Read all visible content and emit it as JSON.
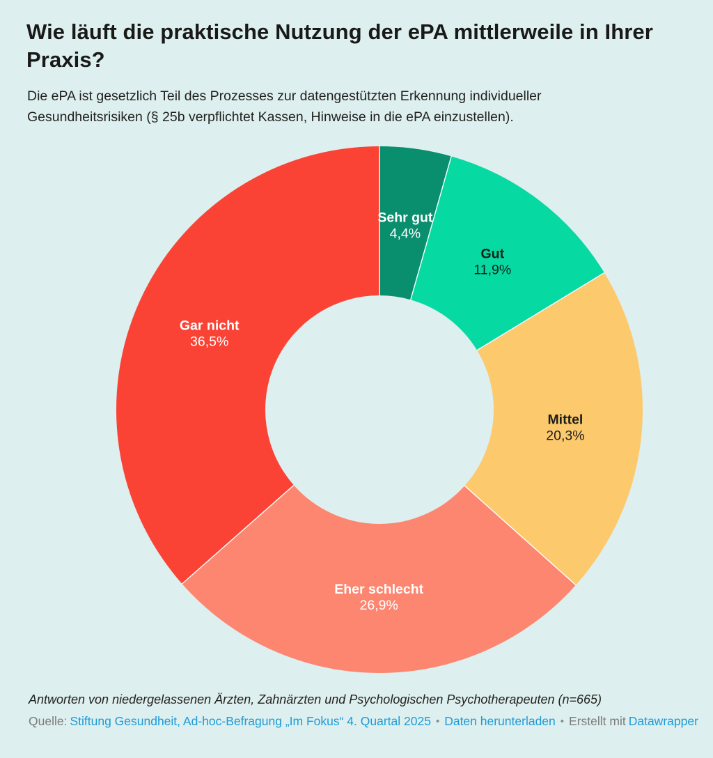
{
  "header": {
    "title_lines": [
      "Wie läuft die praktische Nutzung der ePA mittlerweile in Ihrer",
      "Praxis?"
    ],
    "subtitle_lines": [
      "Die ePA ist gesetzlich Teil des Prozesses zur datengestützten Erkennung individueller",
      "Gesundheitsrisiken (§ 25b verpflichtet Kassen, Hinweise in die ePA einzustellen)."
    ]
  },
  "chart_data": {
    "type": "pie",
    "subtype": "donut",
    "title": "Wie läuft die praktische Nutzung der ePA mittlerweile in Ihrer Praxis?",
    "unit": "%",
    "start_angle": "top",
    "direction": "clockwise",
    "legend_position": "labels-inside-slices",
    "categories": [
      "Sehr gut",
      "Gut",
      "Mittel",
      "Eher schlecht",
      "Gar nicht"
    ],
    "values": [
      4.4,
      11.9,
      20.3,
      26.9,
      36.5
    ],
    "slices": [
      {
        "label": "Sehr gut",
        "value": 4.4,
        "display": "4,4%",
        "color": "#098e6e",
        "label_color": "#ffffff"
      },
      {
        "label": "Gut",
        "value": 11.9,
        "display": "11,9%",
        "color": "#06d9a2",
        "label_color": "#14201b"
      },
      {
        "label": "Mittel",
        "value": 20.3,
        "display": "20,3%",
        "color": "#fcc96d",
        "label_color": "#1d1d1b"
      },
      {
        "label": "Eher schlecht",
        "value": 26.9,
        "display": "26,9%",
        "color": "#fc8670",
        "label_color": "#ffffff"
      },
      {
        "label": "Gar nicht",
        "value": 36.5,
        "display": "36,5%",
        "color": "#fa4335",
        "label_color": "#ffffff"
      }
    ]
  },
  "footer": {
    "note": "Antworten von niedergelassenen Ärzten, Zahnärzten und Psychologischen Psychotherapeuten (n=665)",
    "source_label": "Quelle:",
    "source_link": "Stiftung Gesundheit, Ad-hoc-Befragung „Im Fokus“ 4. Quartal 2025",
    "separator": "•",
    "download_link": "Daten herunterladen",
    "created_label": "Erstellt mit",
    "created_link": "Datawrapper"
  },
  "colors": {
    "background": "#ddefef",
    "text": "#1d1d1b",
    "muted": "#7b7b7b",
    "link": "#1d9bd7",
    "slice_separator": "#ffffff"
  }
}
